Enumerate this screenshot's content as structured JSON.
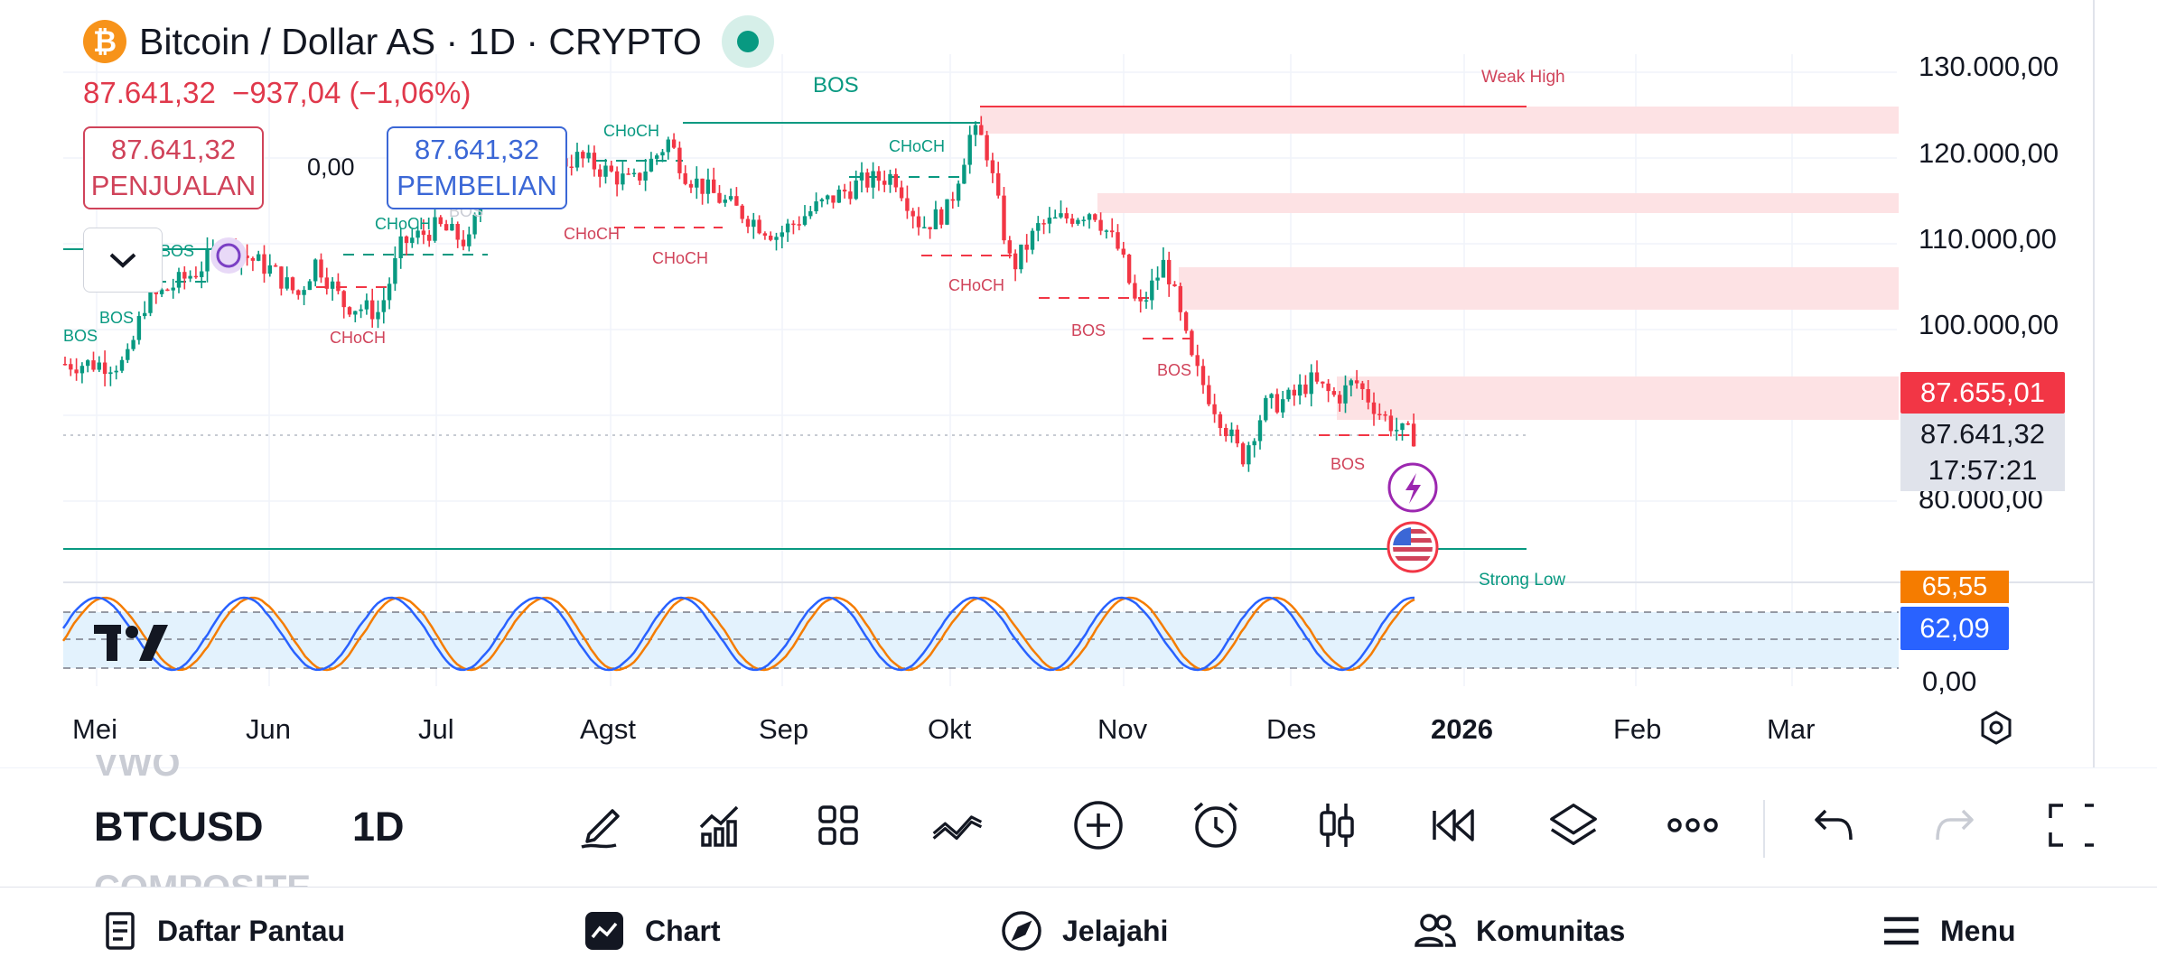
{
  "header": {
    "coin_symbol": "₿",
    "title": "Bitcoin / Dollar AS · 1D · CRYPTO",
    "price_change": "87.641,32  −937,04 (−1,06%)"
  },
  "trade": {
    "sell_price": "87.641,32",
    "sell_label": "PENJUALAN",
    "spread": "0,00",
    "buy_price": "87.641,32",
    "buy_label": "PEMBELIAN"
  },
  "price_axis": {
    "labels": [
      "130.000,00",
      "120.000,00",
      "110.000,00",
      "100.000,00",
      "80.000,00"
    ],
    "current_red": "87.655,01",
    "last_price": "87.641,32",
    "countdown": "17:57:21"
  },
  "oscillator": {
    "orange_value": "65,55",
    "blue_value": "62,09",
    "zero_label": "0,00"
  },
  "time_axis": {
    "labels": [
      "Mei",
      "Jun",
      "Jul",
      "Agst",
      "Sep",
      "Okt",
      "Nov",
      "Des",
      "2026",
      "Feb",
      "Mar"
    ]
  },
  "annotations": {
    "bos_top": "BOS",
    "weak_high": "Weak High",
    "strong_low": "Strong Low",
    "choch_1": "CHoCH",
    "choch_2": "CHoCH",
    "choch_3": "CHoCH",
    "choch_4": "CHoCH",
    "choch_5": "CHoCH",
    "choch_6": "CHoCH",
    "choch_7": "CHoCH",
    "bos_1": "BOS",
    "bos_2": "BOS",
    "bos_3": "BOS",
    "bos_4": "BOS",
    "bos_5": "BOS",
    "bos_6": "BOS",
    "bos_7": "BOS"
  },
  "toolbar": {
    "symbol_above": "VWO",
    "symbol": "BTCUSD",
    "symbol_below": "COMPOSITE",
    "interval": "1D",
    "icons": [
      "brush-icon",
      "indicators-icon",
      "layouts-icon",
      "trend-line-icon",
      "add-icon",
      "alarm-icon",
      "candles-icon",
      "replay-icon",
      "layers-icon",
      "more-icon",
      "undo-icon",
      "redo-icon",
      "fullscreen-icon"
    ]
  },
  "nav": {
    "watchlist": "Daftar Pantau",
    "chart": "Chart",
    "explore": "Jelajahi",
    "community": "Komunitas",
    "menu": "Menu"
  },
  "colors": {
    "up": "#089981",
    "down": "#f23645",
    "zone": "#fde2e4",
    "blue_accent": "#2962ff",
    "orange_accent": "#f57c00"
  },
  "chart_data": {
    "type": "candlestick",
    "symbol": "BTCUSD",
    "interval": "1D",
    "approx_monthly_closes": [
      {
        "month": "Mei",
        "close": 104000
      },
      {
        "month": "Jun",
        "close": 107000
      },
      {
        "month": "Jul",
        "close": 117000
      },
      {
        "month": "Agst",
        "close": 109000
      },
      {
        "month": "Sep",
        "close": 114000
      },
      {
        "month": "Okt",
        "close": 109000
      },
      {
        "month": "Nov",
        "close": 91000
      },
      {
        "month": "Des",
        "close": 87641.32
      }
    ],
    "last_price": 87641.32,
    "change": -937.04,
    "change_pct": -1.06
  }
}
